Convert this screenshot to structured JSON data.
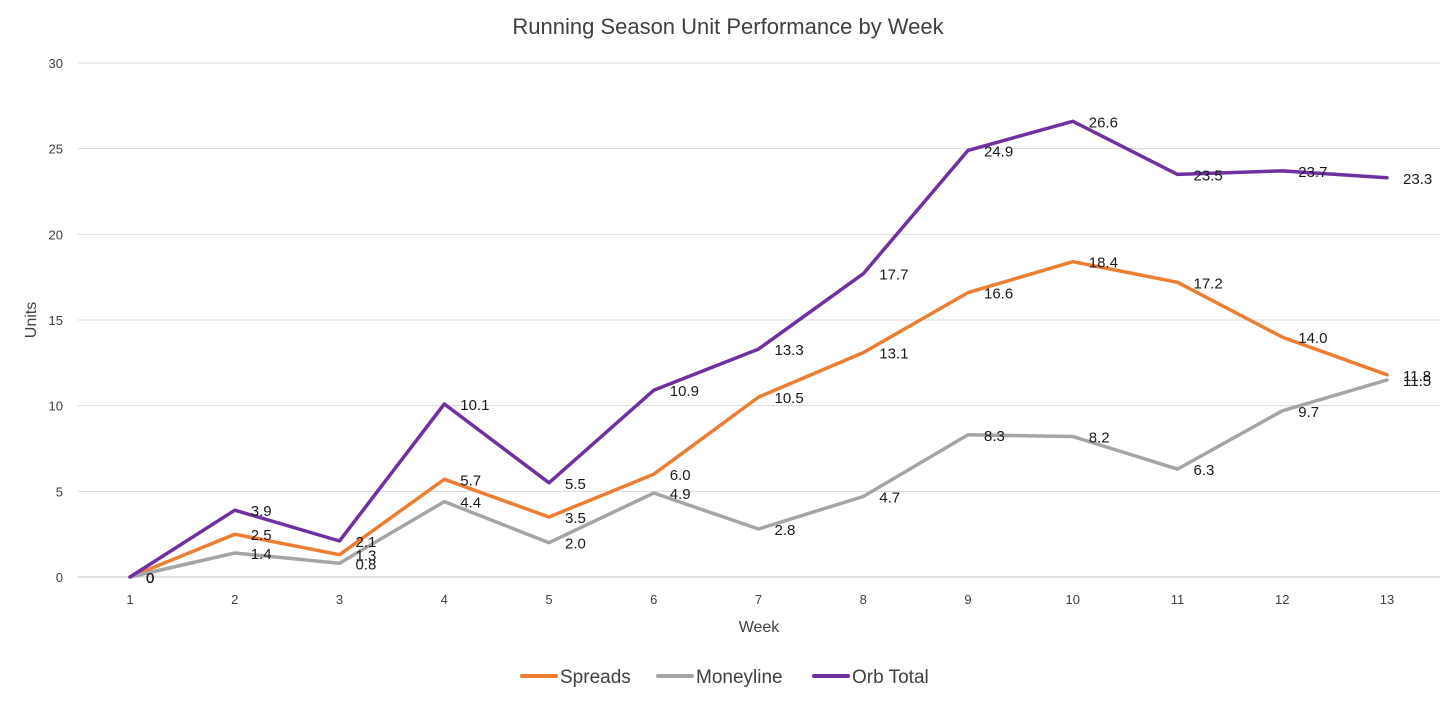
{
  "chart_data": {
    "type": "line",
    "title": "Running Season Unit Performance by Week",
    "xlabel": "Week",
    "ylabel": "Units",
    "categories": [
      "1",
      "2",
      "3",
      "4",
      "5",
      "6",
      "7",
      "8",
      "9",
      "10",
      "11",
      "12",
      "13"
    ],
    "ylim": [
      0,
      30
    ],
    "yticks": [
      "0",
      "5",
      "10",
      "15",
      "20",
      "25",
      "30"
    ],
    "grid": true,
    "legend_position": "bottom",
    "series": [
      {
        "name": "Spreads",
        "color": "#ED7D31",
        "values": [
          0,
          2.5,
          1.3,
          5.7,
          3.5,
          6.0,
          10.5,
          13.1,
          16.6,
          18.4,
          17.2,
          14.0,
          11.8
        ],
        "labels": [
          "0",
          "2.5",
          "1.3",
          "5.7",
          "3.5",
          "6.0",
          "10.5",
          "13.1",
          "16.6",
          "18.4",
          "17.2",
          "14.0",
          "11.8"
        ]
      },
      {
        "name": "Moneyline",
        "color": "#A5A5A5",
        "values": [
          0,
          1.4,
          0.8,
          4.4,
          2.0,
          4.9,
          2.8,
          4.7,
          8.3,
          8.2,
          6.3,
          9.7,
          11.5
        ],
        "labels": [
          "0",
          "1.4",
          "0.8",
          "4.4",
          "2.0",
          "4.9",
          "2.8",
          "4.7",
          "8.3",
          "8.2",
          "6.3",
          "9.7",
          "11.5"
        ]
      },
      {
        "name": "Orb Total",
        "color": "#7030A0",
        "values": [
          0,
          3.9,
          2.1,
          10.1,
          5.5,
          10.9,
          13.3,
          17.7,
          24.9,
          26.6,
          23.5,
          23.7,
          23.3
        ],
        "labels": [
          "0",
          "3.9",
          "2.1",
          "10.1",
          "5.5",
          "10.9",
          "13.3",
          "17.7",
          "24.9",
          "26.6",
          "23.5",
          "23.7",
          "23.3"
        ]
      }
    ]
  }
}
